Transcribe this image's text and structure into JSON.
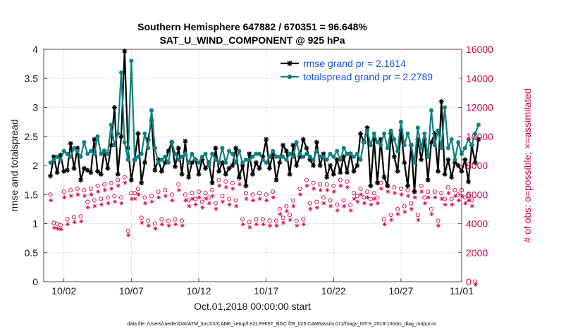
{
  "chart_data": {
    "type": "line",
    "title": "Southern Hemisphere 647882 / 670351 = 96.648%",
    "subtitle": "SAT_U_WIND_COMPONENT @ 925 hPa",
    "xlabel": "Oct.01,2018 00:00:00 start",
    "ylabel": "rmse and totalspread",
    "y2label": "# of obs: o=possible; ×=assimilated",
    "xlim": [
      0.5,
      31.5
    ],
    "ylim": [
      0,
      4
    ],
    "y2lim": [
      0,
      16000
    ],
    "x_ticks": [
      2,
      7,
      12,
      17,
      22,
      27,
      32
    ],
    "x_tick_labels": [
      "10/02",
      "10/07",
      "10/12",
      "10/17",
      "10/22",
      "10/27",
      "11/01"
    ],
    "y_ticks": [
      0,
      0.5,
      1,
      1.5,
      2,
      2.5,
      3,
      3.5,
      4
    ],
    "y_tick_labels": [
      "0",
      "0.5",
      "1",
      "1.5",
      "2",
      "2.5",
      "3",
      "3.5",
      "4"
    ],
    "y2_ticks": [
      0,
      2000,
      4000,
      6000,
      8000,
      10000,
      12000,
      14000,
      16000
    ],
    "y2_tick_labels": [
      "0",
      "2000",
      "4000",
      "6000",
      "8000",
      "10000",
      "12000",
      "14000",
      "16000"
    ],
    "legend": [
      "rmse grand pr = 2.1614",
      "totalspread grand pr = 2.2789"
    ],
    "legend_position": "top-right",
    "footer": "data file: /Users/raeder/DAI/ATM_forcXX/CAM6_setup/f.e21.FHIST_BGC.f09_025.CAM6assim.011/Diags_NTrS_2018-10/obs_diag_output.nc",
    "colors": {
      "rmse": "#000000",
      "spread": "#0f8080",
      "obs": "#d6004f",
      "legend_text": "#1a4fe0"
    },
    "series": [
      {
        "name": "rmse",
        "x_start": 1.0,
        "x_step": 0.25,
        "values": [
          1.82,
          2.15,
          1.88,
          2.18,
          1.9,
          1.92,
          2.38,
          1.95,
          2.3,
          1.75,
          1.95,
          1.92,
          1.88,
          2.45,
          1.9,
          1.85,
          2.25,
          1.95,
          2.35,
          3.0,
          1.85,
          2.5,
          3.97,
          2.3,
          1.75,
          2.1,
          2.55,
          1.7,
          2.05,
          2.45,
          2.78,
          1.92,
          2.1,
          1.9,
          2.05,
          2.25,
          2.4,
          1.98,
          2.3,
          1.85,
          2.42,
          1.8,
          2.05,
          2.1,
          1.85,
          2.1,
          1.95,
          2.05,
          1.7,
          2.3,
          1.9,
          2.05,
          1.85,
          1.95,
          2.0,
          2.3,
          1.8,
          2.0,
          1.65,
          2.2,
          1.85,
          2.05,
          1.95,
          2.15,
          2.45,
          1.95,
          2.2,
          1.75,
          2.05,
          2.35,
          2.25,
          1.85,
          2.35,
          2.0,
          2.15,
          2.45,
          2.3,
          2.1,
          2.0,
          2.4,
          2.0,
          2.2,
          1.8,
          2.0,
          1.85,
          2.1,
          1.88,
          2.15,
          1.88,
          2.2,
          1.9,
          2.0,
          2.55,
          2.4,
          2.65,
          1.65,
          2.45,
          1.7,
          2.45,
          1.8,
          1.65,
          2.55,
          2.15,
          1.9,
          2.6,
          2.05,
          1.65,
          2.35,
          1.55,
          2.45,
          2.1,
          2.45,
          1.75,
          2.4,
          2.55,
          1.9,
          3.1,
          1.85,
          2.1,
          1.8,
          2.05,
          2.0,
          1.9,
          2.1,
          1.72,
          2.35,
          2.05,
          2.45
        ]
      },
      {
        "name": "totalspread",
        "x_start": 1.0,
        "x_step": 0.25,
        "values": [
          2.05,
          2.1,
          2.15,
          2.1,
          2.25,
          2.2,
          2.15,
          2.3,
          2.25,
          2.15,
          2.4,
          2.2,
          2.25,
          2.2,
          2.5,
          2.2,
          2.25,
          2.2,
          2.7,
          2.35,
          2.55,
          3.6,
          2.4,
          2.1,
          3.8,
          2.1,
          2.15,
          2.2,
          2.55,
          2.3,
          2.95,
          2.3,
          2.05,
          2.1,
          2.15,
          2.05,
          2.4,
          2.2,
          2.1,
          2.15,
          2.2,
          2.05,
          2.2,
          2.1,
          2.05,
          2.15,
          2.2,
          2.0,
          2.2,
          2.1,
          2.05,
          2.3,
          2.05,
          2.25,
          2.2,
          2.05,
          2.25,
          2.05,
          2.1,
          2.1,
          2.15,
          2.2,
          2.2,
          2.1,
          2.05,
          2.15,
          2.25,
          2.15,
          2.15,
          2.15,
          2.1,
          2.2,
          2.15,
          2.4,
          2.2,
          2.15,
          2.2,
          2.15,
          2.1,
          2.25,
          2.15,
          2.15,
          2.1,
          2.2,
          2.15,
          2.25,
          2.1,
          2.3,
          2.2,
          2.2,
          2.15,
          2.2,
          2.1,
          2.4,
          2.6,
          2.35,
          2.55,
          2.4,
          2.35,
          2.55,
          2.3,
          2.6,
          2.45,
          2.25,
          2.75,
          2.35,
          2.55,
          2.35,
          2.05,
          2.65,
          2.3,
          2.55,
          2.15,
          2.95,
          2.35,
          2.6,
          2.3,
          3.0,
          2.3,
          2.45,
          2.1,
          2.4,
          2.2,
          2.3,
          2.45,
          2.35,
          2.55,
          2.7
        ]
      },
      {
        "name": "obs_possible",
        "axis": "right",
        "x_start": 1.0,
        "x_step": 0.25,
        "values": [
          6000,
          4050,
          4000,
          3900,
          6200,
          4300,
          6300,
          4450,
          6400,
          4500,
          6300,
          5500,
          6400,
          5600,
          6600,
          5700,
          6700,
          5800,
          6800,
          5900,
          7000,
          5800,
          7200,
          3500,
          6100,
          6100,
          6400,
          4400,
          5800,
          4200,
          5900,
          4000,
          6200,
          4300,
          6300,
          4200,
          6000,
          4300,
          6700,
          4200,
          6000,
          5600,
          6100,
          5700,
          6200,
          5500,
          6100,
          5800,
          6300,
          5400,
          7000,
          5900,
          6900,
          5700,
          6800,
          5600,
          7100,
          4300,
          6100,
          4100,
          6000,
          4300,
          6100,
          4300,
          6000,
          4200,
          6200,
          4200,
          5000,
          4400,
          5200,
          4600,
          5600,
          4200,
          6400,
          4300,
          7000,
          5400,
          6800,
          5500,
          6700,
          5800,
          6700,
          5600,
          6600,
          5300,
          7000,
          5600,
          6900,
          5300,
          6100,
          5900,
          6400,
          5800,
          6200,
          5700,
          6100,
          5800,
          6800,
          4300,
          6600,
          4600,
          6500,
          5000,
          6400,
          5200,
          6300,
          5400,
          6200,
          4600,
          6600,
          5800,
          6200,
          5000,
          6200,
          4200,
          6100,
          5700,
          6500,
          5700,
          6300,
          6000,
          6300,
          5800,
          6000,
          5600,
          0
        ]
      },
      {
        "name": "obs_assimilated",
        "axis": "right",
        "x_start": 1.0,
        "x_step": 0.25,
        "values": [
          5800,
          3900,
          3850,
          3800,
          6000,
          4150,
          6100,
          4300,
          6200,
          4350,
          6100,
          5300,
          6200,
          5400,
          6400,
          5500,
          6500,
          5600,
          6600,
          5700,
          6800,
          5600,
          7000,
          3400,
          5900,
          5900,
          6200,
          4250,
          5600,
          4050,
          5700,
          3850,
          6000,
          4150,
          6100,
          4050,
          5800,
          4150,
          6500,
          4050,
          5800,
          5400,
          5900,
          5500,
          6000,
          5300,
          5900,
          5600,
          6100,
          5200,
          6800,
          5700,
          6700,
          5500,
          6600,
          5400,
          6900,
          4150,
          5900,
          3950,
          5800,
          4150,
          5900,
          4150,
          5800,
          4050,
          6000,
          4050,
          4850,
          4250,
          5050,
          4450,
          5400,
          4050,
          6200,
          4150,
          6800,
          5200,
          6600,
          5300,
          6500,
          5600,
          6500,
          5400,
          6400,
          5100,
          6800,
          5400,
          6700,
          5100,
          5900,
          5700,
          6200,
          5600,
          6000,
          5500,
          5900,
          5600,
          6600,
          4150,
          6400,
          4450,
          6300,
          4850,
          6200,
          5000,
          6100,
          5200,
          6000,
          4450,
          6400,
          5600,
          6000,
          4850,
          6000,
          4050,
          5900,
          5500,
          6300,
          5500,
          6100,
          5800,
          6100,
          5600,
          5800,
          5400,
          0
        ]
      }
    ]
  }
}
